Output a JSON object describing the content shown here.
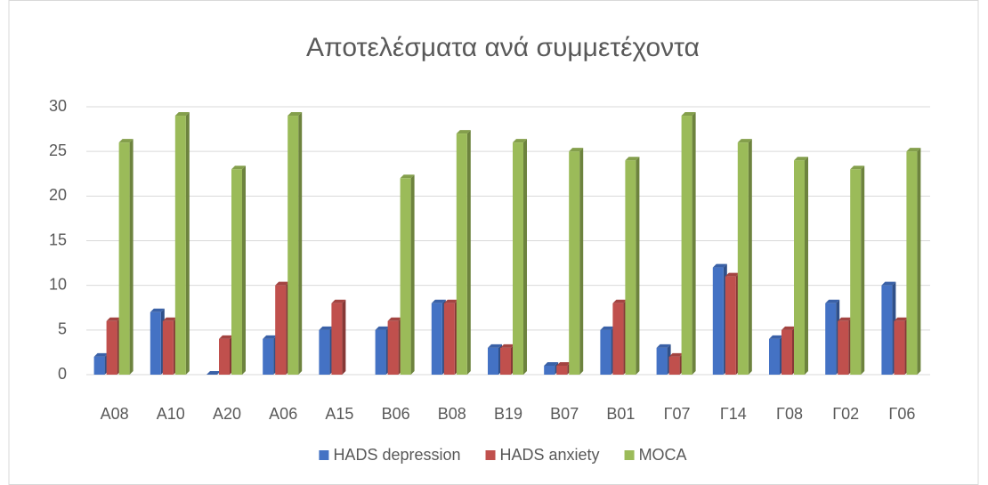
{
  "chart_data": {
    "type": "bar",
    "title": "Αποτελέσματα ανά συμμετέχοντα",
    "categories": [
      "Α08",
      "Α10",
      "Α20",
      "Α06",
      "Α15",
      "Β06",
      "Β08",
      "Β19",
      "Β07",
      "Β01",
      "Γ07",
      "Γ14",
      "Γ08",
      "Γ02",
      "Γ06"
    ],
    "series": [
      {
        "name": "HADS depression",
        "color": "#4472c4",
        "values": [
          2,
          7,
          0,
          4,
          5,
          5,
          8,
          3,
          1,
          5,
          3,
          12,
          4,
          8,
          10
        ]
      },
      {
        "name": "HADS anxiety",
        "color": "#c0504d",
        "values": [
          6,
          6,
          4,
          10,
          8,
          6,
          8,
          3,
          1,
          8,
          2,
          11,
          5,
          6,
          6
        ]
      },
      {
        "name": "MOCA",
        "color": "#9bbb59",
        "values": [
          26,
          29,
          23,
          29,
          null,
          22,
          27,
          26,
          25,
          24,
          29,
          26,
          24,
          23,
          25
        ]
      }
    ],
    "ylim": [
      0,
      30
    ],
    "yticks": [
      0,
      5,
      10,
      15,
      20,
      25,
      30
    ],
    "grid": true,
    "legend": "bottom"
  }
}
